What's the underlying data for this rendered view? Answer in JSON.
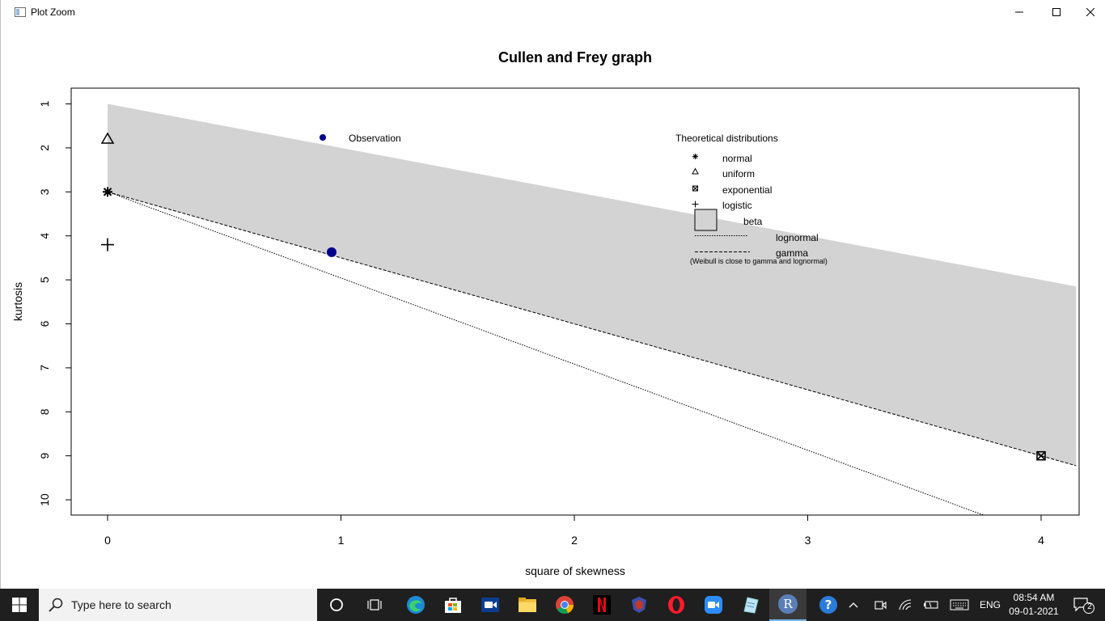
{
  "window": {
    "title": "Plot Zoom"
  },
  "chart_data": {
    "type": "scatter",
    "title": "Cullen and Frey graph",
    "xlabel": "square of skewness",
    "ylabel": "kurtosis",
    "xlim": [
      0,
      4.15
    ],
    "ylim": [
      10,
      1
    ],
    "y_axis_reversed": true,
    "x_ticks": [
      "0",
      "1",
      "2",
      "3",
      "4"
    ],
    "y_ticks": [
      "1",
      "2",
      "3",
      "4",
      "5",
      "6",
      "7",
      "8",
      "9",
      "10"
    ],
    "observation": {
      "x": 0.96,
      "y": 4.37
    },
    "observation_legend": "Observation",
    "theoretical": [
      {
        "name": "normal",
        "marker": "asterisk",
        "x": 0,
        "y": 3
      },
      {
        "name": "uniform",
        "marker": "triangle",
        "x": 0,
        "y": 1.8
      },
      {
        "name": "exponential",
        "marker": "boxed-x",
        "x": 4,
        "y": 9
      },
      {
        "name": "logistic",
        "marker": "plus",
        "x": 0,
        "y": 4.2
      }
    ],
    "beta_region": {
      "upper": [
        [
          0,
          1
        ],
        [
          4.15,
          5.15
        ]
      ],
      "lower": [
        [
          0,
          3
        ],
        [
          4.15,
          9.225
        ]
      ]
    },
    "gamma_line": [
      [
        0,
        3
      ],
      [
        4.15,
        9.225
      ]
    ],
    "lognormal_line": [
      [
        0,
        3
      ],
      [
        3.78,
        10.4
      ]
    ],
    "legend": {
      "title": "Theoretical distributions",
      "items": [
        "normal",
        "uniform",
        "exponential",
        "logistic",
        "beta",
        "lognormal",
        "gamma"
      ],
      "note": "(Weibull is close to gamma and lognormal)"
    },
    "grid": false,
    "colors": {
      "beta_fill": "#d3d3d3",
      "observation": "#00008b"
    }
  },
  "taskbar": {
    "search_placeholder": "Type here to search",
    "language": "ENG",
    "time": "08:54 AM",
    "date": "09-01-2021",
    "notification_count": "2",
    "apps": [
      "cortana-icon",
      "task-view-icon",
      "edge-icon",
      "store-icon",
      "zoom-video-icon",
      "file-explorer-icon",
      "chrome-icon",
      "netflix-icon",
      "game-icon",
      "opera-icon",
      "zoom-icon",
      "notes-icon",
      "r-icon"
    ]
  }
}
